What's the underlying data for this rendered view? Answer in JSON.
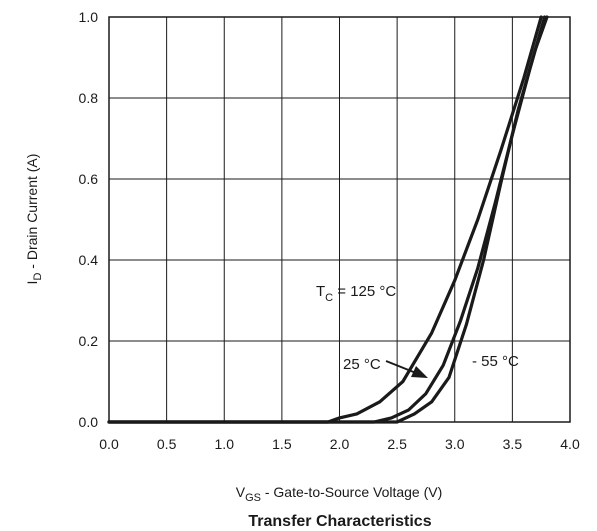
{
  "chart_data": {
    "type": "line",
    "title": "Transfer Characteristics",
    "xlabel": {
      "main": "V",
      "sub": "GS",
      "rest": " - Gate-to-Source Voltage (V)"
    },
    "ylabel": {
      "main": "I",
      "sub": "D",
      "rest": " - Drain Current (A)"
    },
    "xlim": [
      0.0,
      4.0
    ],
    "ylim": [
      0.0,
      1.0
    ],
    "x_ticks": [
      "0.0",
      "0.5",
      "1.0",
      "1.5",
      "2.0",
      "2.5",
      "3.0",
      "3.5",
      "4.0"
    ],
    "y_ticks": [
      "0.0",
      "0.2",
      "0.4",
      "0.6",
      "0.8",
      "1.0"
    ],
    "grid": true,
    "series": [
      {
        "name": "125 °C",
        "x": [
          0.0,
          1.9,
          2.0,
          2.15,
          2.35,
          2.55,
          2.8,
          3.0,
          3.2,
          3.4,
          3.6,
          3.75
        ],
        "y": [
          0.0,
          0.0,
          0.01,
          0.02,
          0.05,
          0.1,
          0.22,
          0.35,
          0.5,
          0.67,
          0.85,
          1.0
        ]
      },
      {
        "name": "25 °C",
        "x": [
          0.0,
          2.3,
          2.45,
          2.6,
          2.75,
          2.9,
          3.05,
          3.2,
          3.35,
          3.5,
          3.65,
          3.78
        ],
        "y": [
          0.0,
          0.0,
          0.01,
          0.03,
          0.07,
          0.14,
          0.25,
          0.38,
          0.54,
          0.71,
          0.87,
          1.0
        ]
      },
      {
        "name": "- 55 °C",
        "x": [
          0.0,
          2.5,
          2.65,
          2.8,
          2.95,
          3.1,
          3.25,
          3.4,
          3.55,
          3.7,
          3.8
        ],
        "y": [
          0.0,
          0.0,
          0.02,
          0.05,
          0.11,
          0.24,
          0.4,
          0.59,
          0.77,
          0.92,
          1.0
        ]
      }
    ],
    "annotations": [
      {
        "main": "T",
        "sub": "C",
        "rest": " = 125 °C"
      },
      {
        "text": "25 °C"
      },
      {
        "text": "- 55 °C"
      }
    ]
  }
}
